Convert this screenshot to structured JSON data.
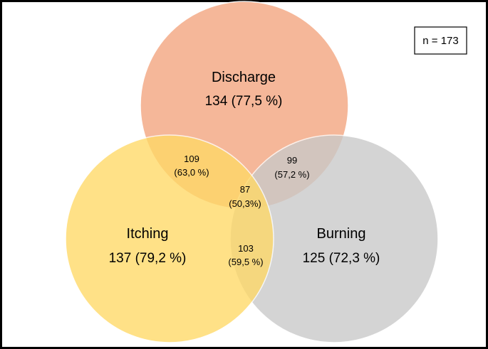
{
  "sample_size": "n = 173",
  "colors": {
    "discharge": "#F4B08F",
    "itching": "#FFD966",
    "burning": "#C9C9C9",
    "border": "#000000"
  },
  "sets": {
    "discharge": {
      "name": "Discharge",
      "value": "134 (77,5 %)"
    },
    "itching": {
      "name": "Itching",
      "value": "137 (79,2 %)"
    },
    "burning": {
      "name": "Burning",
      "value": "125 (72,3 %)"
    }
  },
  "overlaps": {
    "discharge_itching": {
      "count": "109",
      "percent": "(63,0 %)"
    },
    "discharge_burning": {
      "count": "99",
      "percent": "(57,2 %)"
    },
    "itching_burning": {
      "count": "103",
      "percent": "(59,5 %)"
    },
    "all_three": {
      "count": "87",
      "percent": "(50,3%)"
    }
  }
}
